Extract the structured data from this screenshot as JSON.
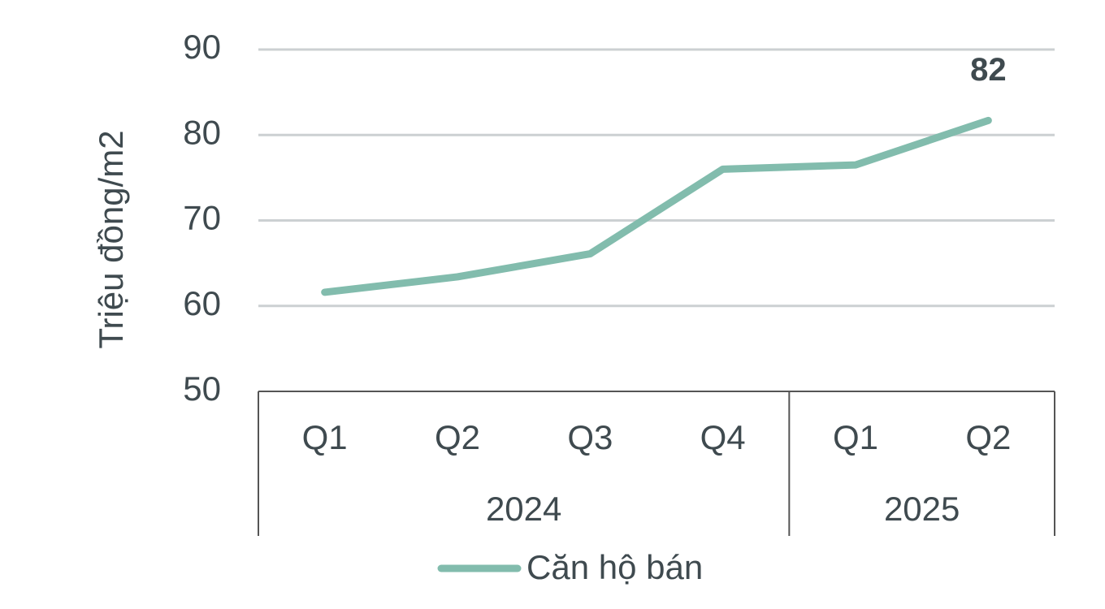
{
  "chart_data": {
    "type": "line",
    "y_label": "Triệu đồng/m2",
    "categories": [
      "Q1",
      "Q2",
      "Q3",
      "Q4",
      "Q1",
      "Q2"
    ],
    "category_groups": [
      "2024",
      "2024",
      "2024",
      "2024",
      "2025",
      "2025"
    ],
    "series": [
      {
        "name": "Căn hộ bán",
        "color": "#82bcad",
        "values": [
          61.6,
          63.4,
          66.1,
          76.0,
          76.5,
          81.7
        ],
        "value_labels": [
          null,
          null,
          null,
          null,
          null,
          "82"
        ]
      }
    ],
    "ylim": [
      50,
      90
    ],
    "yticks": [
      50,
      60,
      70,
      80,
      90
    ],
    "grid": true
  }
}
